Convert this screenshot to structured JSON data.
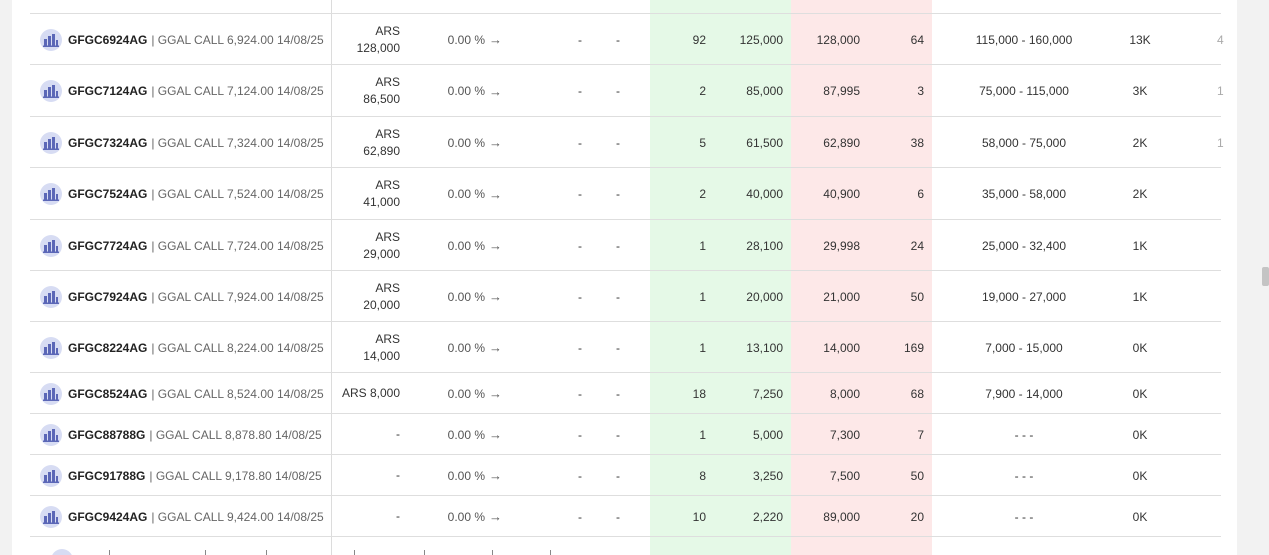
{
  "colors": {
    "bid_bg": "#e5f9e7",
    "ask_bg": "#fde8e8",
    "avatar_bg": "#d7dcf3"
  },
  "icons": {
    "instrument": "building-icon",
    "change_arrow": "arrow-right-icon"
  },
  "rows": [
    {
      "ticker": "GFGC6924AG",
      "desc": "| GGAL CALL 6,924.00 14/08/25",
      "last_cur": "ARS",
      "last_val": "128,000",
      "change": "0.00 %",
      "dash1": "-",
      "dash2": "-",
      "bid_qty": "92",
      "bid_price": "125,000",
      "ask_price": "128,000",
      "ask_qty": "64",
      "range": "115,000 - 160,000",
      "volume": "13K",
      "cut": "4"
    },
    {
      "ticker": "GFGC7124AG",
      "desc": "| GGAL CALL 7,124.00 14/08/25",
      "last_cur": "ARS",
      "last_val": "86,500",
      "change": "0.00 %",
      "dash1": "-",
      "dash2": "-",
      "bid_qty": "2",
      "bid_price": "85,000",
      "ask_price": "87,995",
      "ask_qty": "3",
      "range": "75,000 - 115,000",
      "volume": "3K",
      "cut": "1"
    },
    {
      "ticker": "GFGC7324AG",
      "desc": "| GGAL CALL 7,324.00 14/08/25",
      "last_cur": "ARS",
      "last_val": "62,890",
      "change": "0.00 %",
      "dash1": "-",
      "dash2": "-",
      "bid_qty": "5",
      "bid_price": "61,500",
      "ask_price": "62,890",
      "ask_qty": "38",
      "range": "58,000 - 75,000",
      "volume": "2K",
      "cut": "1"
    },
    {
      "ticker": "GFGC7524AG",
      "desc": "| GGAL CALL 7,524.00 14/08/25",
      "last_cur": "ARS",
      "last_val": "41,000",
      "change": "0.00 %",
      "dash1": "-",
      "dash2": "-",
      "bid_qty": "2",
      "bid_price": "40,000",
      "ask_price": "40,900",
      "ask_qty": "6",
      "range": "35,000 - 58,000",
      "volume": "2K",
      "cut": ""
    },
    {
      "ticker": "GFGC7724AG",
      "desc": "| GGAL CALL 7,724.00 14/08/25",
      "last_cur": "ARS",
      "last_val": "29,000",
      "change": "0.00 %",
      "dash1": "-",
      "dash2": "-",
      "bid_qty": "1",
      "bid_price": "28,100",
      "ask_price": "29,998",
      "ask_qty": "24",
      "range": "25,000 - 32,400",
      "volume": "1K",
      "cut": ""
    },
    {
      "ticker": "GFGC7924AG",
      "desc": "| GGAL CALL 7,924.00 14/08/25",
      "last_cur": "ARS",
      "last_val": "20,000",
      "change": "0.00 %",
      "dash1": "-",
      "dash2": "-",
      "bid_qty": "1",
      "bid_price": "20,000",
      "ask_price": "21,000",
      "ask_qty": "50",
      "range": "19,000 - 27,000",
      "volume": "1K",
      "cut": ""
    },
    {
      "ticker": "GFGC8224AG",
      "desc": "| GGAL CALL 8,224.00 14/08/25",
      "last_cur": "ARS",
      "last_val": "14,000",
      "change": "0.00 %",
      "dash1": "-",
      "dash2": "-",
      "bid_qty": "1",
      "bid_price": "13,100",
      "ask_price": "14,000",
      "ask_qty": "169",
      "range": "7,000 - 15,000",
      "volume": "0K",
      "cut": ""
    },
    {
      "ticker": "GFGC8524AG",
      "desc": "| GGAL CALL 8,524.00 14/08/25",
      "last_cur": "ARS 8,000",
      "last_val": "",
      "change": "0.00 %",
      "dash1": "-",
      "dash2": "-",
      "bid_qty": "18",
      "bid_price": "7,250",
      "ask_price": "8,000",
      "ask_qty": "68",
      "range": "7,900 - 14,000",
      "volume": "0K",
      "cut": ""
    },
    {
      "ticker": "GFGC88788G",
      "desc": "| GGAL CALL 8,878.80 14/08/25",
      "last_cur": "-",
      "last_val": "",
      "change": "0.00 %",
      "dash1": "-",
      "dash2": "-",
      "bid_qty": "1",
      "bid_price": "5,000",
      "ask_price": "7,300",
      "ask_qty": "7",
      "range": "- - -",
      "volume": "0K",
      "cut": ""
    },
    {
      "ticker": "GFGC91788G",
      "desc": "| GGAL CALL 9,178.80 14/08/25",
      "last_cur": "-",
      "last_val": "",
      "change": "0.00 %",
      "dash1": "-",
      "dash2": "-",
      "bid_qty": "8",
      "bid_price": "3,250",
      "ask_price": "7,500",
      "ask_qty": "50",
      "range": "- - -",
      "volume": "0K",
      "cut": ""
    },
    {
      "ticker": "GFGC9424AG",
      "desc": "| GGAL CALL 9,424.00 14/08/25",
      "last_cur": "-",
      "last_val": "",
      "change": "0.00 %",
      "dash1": "-",
      "dash2": "-",
      "bid_qty": "10",
      "bid_price": "2,220",
      "ask_price": "89,000",
      "ask_qty": "20",
      "range": "- - -",
      "volume": "0K",
      "cut": ""
    }
  ]
}
